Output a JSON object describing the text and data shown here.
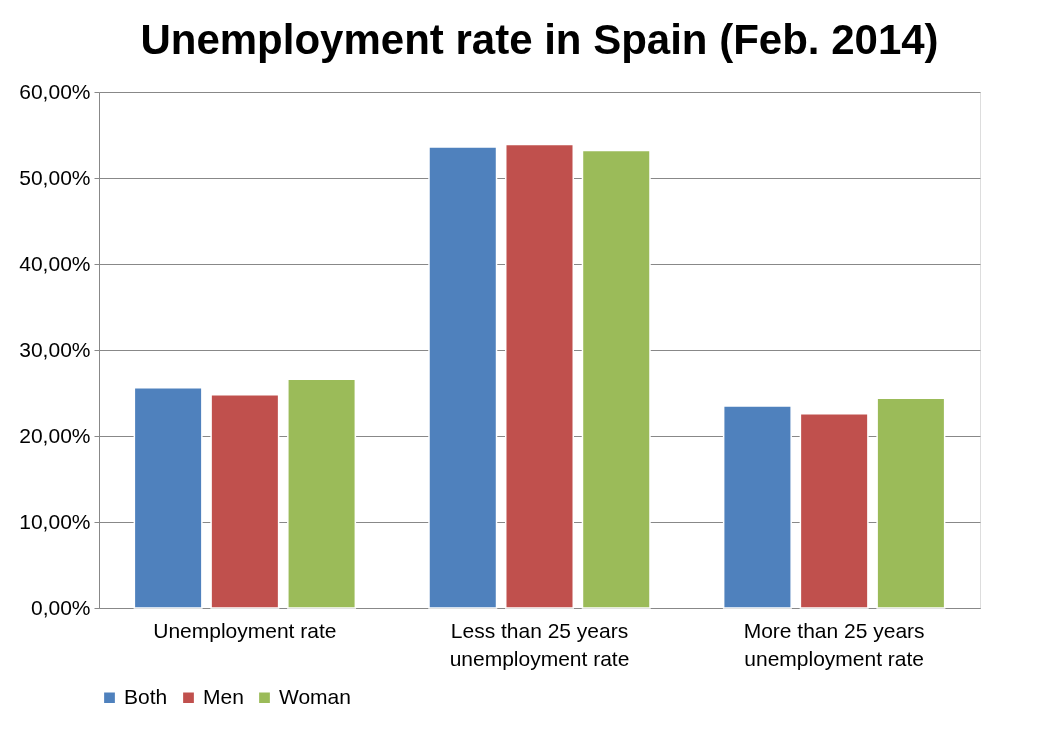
{
  "chart_data": {
    "type": "bar",
    "title": "Unemployment rate in Spain (Feb. 2014)",
    "categories": [
      "Unemployment rate",
      "Less than 25 years unemployment rate",
      "More than 25 years unemployment rate"
    ],
    "series": [
      {
        "name": "Both",
        "color": "#4f81bd",
        "values": [
          25.6,
          53.6,
          23.5
        ]
      },
      {
        "name": "Men",
        "color": "#c0504d",
        "values": [
          24.8,
          53.9,
          22.6
        ]
      },
      {
        "name": "Woman",
        "color": "#9bbb59",
        "values": [
          26.6,
          53.2,
          24.4
        ]
      }
    ],
    "ylim": [
      0,
      60
    ],
    "yticks": [
      {
        "value": 0,
        "label": "0,00%"
      },
      {
        "value": 10,
        "label": "10,00%"
      },
      {
        "value": 20,
        "label": "20,00%"
      },
      {
        "value": 30,
        "label": "30,00%"
      },
      {
        "value": 40,
        "label": "40,00%"
      },
      {
        "value": 50,
        "label": "50,00%"
      },
      {
        "value": 60,
        "label": "60,00%"
      }
    ],
    "grid": "y",
    "legend": "bottom"
  }
}
